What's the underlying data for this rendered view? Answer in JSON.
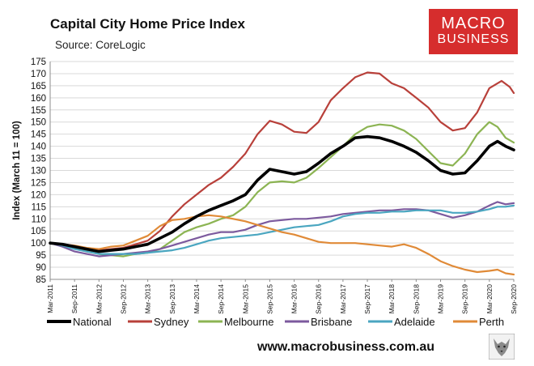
{
  "header": {
    "title": "Capital City Home Price Index",
    "source": "Source: CoreLogic",
    "logo_line1": "MACRO",
    "logo_line2": "BUSINESS",
    "footer_url": "www.macrobusiness.com.au"
  },
  "chart_data": {
    "type": "line",
    "title": "Capital City Home Price Index",
    "subtitle": "Source: CoreLogic",
    "xlabel": "",
    "ylabel": "Index (March 11 = 100)",
    "ylim": [
      85,
      175
    ],
    "yticks": [
      85,
      90,
      95,
      100,
      105,
      110,
      115,
      120,
      125,
      130,
      135,
      140,
      145,
      150,
      155,
      160,
      165,
      170,
      175
    ],
    "grid": "horizontal",
    "legend_position": "bottom",
    "x_tick_labels": [
      "Mar-2011",
      "Sep-2011",
      "Mar-2012",
      "Sep-2012",
      "Mar-2013",
      "Sep-2013",
      "Mar-2014",
      "Sep-2014",
      "Mar-2015",
      "Sep-2015",
      "Mar-2016",
      "Sep-2016",
      "Mar-2017",
      "Sep-2017",
      "Mar-2018",
      "Sep-2018",
      "Mar-2019",
      "Sep-2019",
      "Mar-2020",
      "Sep-2020"
    ],
    "x_months_from_mar_2011": [
      0,
      6,
      12,
      18,
      24,
      30,
      36,
      42,
      48,
      54,
      60,
      66,
      72,
      78,
      84,
      90,
      96,
      102,
      108,
      114
    ],
    "series": [
      {
        "name": "National",
        "color": "#000000",
        "width": 3.6,
        "points": [
          [
            0,
            100
          ],
          [
            3,
            99.5
          ],
          [
            6,
            98.5
          ],
          [
            9,
            97.5
          ],
          [
            12,
            96.5
          ],
          [
            15,
            97
          ],
          [
            18,
            97.5
          ],
          [
            21,
            98.5
          ],
          [
            24,
            99.5
          ],
          [
            27,
            102
          ],
          [
            30,
            104.5
          ],
          [
            33,
            108
          ],
          [
            36,
            111
          ],
          [
            39,
            113.5
          ],
          [
            42,
            115.5
          ],
          [
            45,
            117.5
          ],
          [
            48,
            120
          ],
          [
            51,
            126
          ],
          [
            54,
            130.5
          ],
          [
            57,
            129.5
          ],
          [
            60,
            128.5
          ],
          [
            63,
            129.5
          ],
          [
            66,
            133
          ],
          [
            69,
            137
          ],
          [
            72,
            140
          ],
          [
            75,
            143.5
          ],
          [
            78,
            144
          ],
          [
            81,
            143.5
          ],
          [
            84,
            142
          ],
          [
            87,
            140
          ],
          [
            90,
            137.5
          ],
          [
            93,
            134
          ],
          [
            96,
            130
          ],
          [
            99,
            128.5
          ],
          [
            102,
            129
          ],
          [
            105,
            134
          ],
          [
            108,
            140
          ],
          [
            110,
            142
          ],
          [
            112,
            140
          ],
          [
            114,
            138.5
          ]
        ]
      },
      {
        "name": "Sydney",
        "color": "#b8403a",
        "width": 2.2,
        "points": [
          [
            0,
            100
          ],
          [
            3,
            99
          ],
          [
            6,
            98
          ],
          [
            9,
            97.5
          ],
          [
            12,
            97
          ],
          [
            15,
            97.5
          ],
          [
            18,
            98
          ],
          [
            21,
            99.5
          ],
          [
            24,
            101
          ],
          [
            27,
            105
          ],
          [
            30,
            111
          ],
          [
            33,
            116
          ],
          [
            36,
            120
          ],
          [
            39,
            124
          ],
          [
            42,
            127
          ],
          [
            45,
            131.5
          ],
          [
            48,
            137
          ],
          [
            51,
            145
          ],
          [
            54,
            150.5
          ],
          [
            57,
            149
          ],
          [
            60,
            146
          ],
          [
            63,
            145.5
          ],
          [
            66,
            150
          ],
          [
            69,
            159
          ],
          [
            72,
            164
          ],
          [
            75,
            168.5
          ],
          [
            78,
            170.5
          ],
          [
            81,
            170
          ],
          [
            84,
            166
          ],
          [
            87,
            164
          ],
          [
            90,
            160
          ],
          [
            93,
            156
          ],
          [
            96,
            150
          ],
          [
            99,
            146.5
          ],
          [
            102,
            147.5
          ],
          [
            105,
            154
          ],
          [
            108,
            164
          ],
          [
            111,
            167
          ],
          [
            113,
            164.5
          ],
          [
            114,
            162
          ]
        ]
      },
      {
        "name": "Melbourne",
        "color": "#8cb453",
        "width": 2.2,
        "points": [
          [
            0,
            100
          ],
          [
            3,
            99.5
          ],
          [
            6,
            98
          ],
          [
            9,
            96.5
          ],
          [
            12,
            95.5
          ],
          [
            15,
            95
          ],
          [
            18,
            94.5
          ],
          [
            21,
            95.5
          ],
          [
            24,
            96
          ],
          [
            27,
            97.5
          ],
          [
            30,
            101
          ],
          [
            33,
            104.5
          ],
          [
            36,
            106.5
          ],
          [
            39,
            108
          ],
          [
            42,
            110
          ],
          [
            45,
            111.5
          ],
          [
            48,
            115
          ],
          [
            51,
            121
          ],
          [
            54,
            125
          ],
          [
            57,
            125.5
          ],
          [
            60,
            125
          ],
          [
            63,
            127
          ],
          [
            66,
            131
          ],
          [
            69,
            135.5
          ],
          [
            72,
            140
          ],
          [
            75,
            145
          ],
          [
            78,
            148
          ],
          [
            81,
            149
          ],
          [
            84,
            148.5
          ],
          [
            87,
            146.5
          ],
          [
            90,
            143
          ],
          [
            93,
            138
          ],
          [
            96,
            133
          ],
          [
            99,
            132
          ],
          [
            102,
            137
          ],
          [
            105,
            145
          ],
          [
            108,
            150
          ],
          [
            110,
            148
          ],
          [
            112,
            143.5
          ],
          [
            114,
            141.5
          ]
        ]
      },
      {
        "name": "Brisbane",
        "color": "#7c5a9e",
        "width": 2.2,
        "points": [
          [
            0,
            100
          ],
          [
            3,
            98.5
          ],
          [
            6,
            96.5
          ],
          [
            9,
            95.5
          ],
          [
            12,
            94.5
          ],
          [
            15,
            95
          ],
          [
            18,
            95.5
          ],
          [
            21,
            96
          ],
          [
            24,
            96.5
          ],
          [
            27,
            97.5
          ],
          [
            30,
            99
          ],
          [
            33,
            100.5
          ],
          [
            36,
            102
          ],
          [
            39,
            103.5
          ],
          [
            42,
            104.5
          ],
          [
            45,
            104.5
          ],
          [
            48,
            105.5
          ],
          [
            51,
            107.5
          ],
          [
            54,
            109
          ],
          [
            57,
            109.5
          ],
          [
            60,
            110
          ],
          [
            63,
            110
          ],
          [
            66,
            110.5
          ],
          [
            69,
            111
          ],
          [
            72,
            112
          ],
          [
            75,
            112.5
          ],
          [
            78,
            113
          ],
          [
            81,
            113.5
          ],
          [
            84,
            113.5
          ],
          [
            87,
            114
          ],
          [
            90,
            114
          ],
          [
            93,
            113.5
          ],
          [
            96,
            112
          ],
          [
            99,
            110.5
          ],
          [
            102,
            111.5
          ],
          [
            105,
            113
          ],
          [
            108,
            115.5
          ],
          [
            110,
            117
          ],
          [
            112,
            116
          ],
          [
            114,
            116.5
          ]
        ]
      },
      {
        "name": "Adelaide",
        "color": "#4aa6c0",
        "width": 2.2,
        "points": [
          [
            0,
            100
          ],
          [
            3,
            99
          ],
          [
            6,
            97.5
          ],
          [
            9,
            96.5
          ],
          [
            12,
            95.5
          ],
          [
            15,
            95.5
          ],
          [
            18,
            95.5
          ],
          [
            21,
            95.5
          ],
          [
            24,
            96
          ],
          [
            27,
            96.5
          ],
          [
            30,
            97
          ],
          [
            33,
            98
          ],
          [
            36,
            99.5
          ],
          [
            39,
            101
          ],
          [
            42,
            102
          ],
          [
            45,
            102.5
          ],
          [
            48,
            103
          ],
          [
            51,
            103.5
          ],
          [
            54,
            104.5
          ],
          [
            57,
            105.5
          ],
          [
            60,
            106.5
          ],
          [
            63,
            107
          ],
          [
            66,
            107.5
          ],
          [
            69,
            109
          ],
          [
            72,
            111
          ],
          [
            75,
            112
          ],
          [
            78,
            112.5
          ],
          [
            81,
            112.5
          ],
          [
            84,
            113
          ],
          [
            87,
            113
          ],
          [
            90,
            113.5
          ],
          [
            93,
            113.5
          ],
          [
            96,
            113.5
          ],
          [
            99,
            112.5
          ],
          [
            102,
            112.5
          ],
          [
            105,
            113
          ],
          [
            108,
            114
          ],
          [
            110,
            115
          ],
          [
            112,
            115
          ],
          [
            114,
            115.5
          ]
        ]
      },
      {
        "name": "Perth",
        "color": "#e08a37",
        "width": 2.2,
        "points": [
          [
            0,
            100
          ],
          [
            3,
            99.5
          ],
          [
            6,
            99
          ],
          [
            9,
            98
          ],
          [
            12,
            97.5
          ],
          [
            15,
            98.5
          ],
          [
            18,
            99
          ],
          [
            21,
            101
          ],
          [
            24,
            103
          ],
          [
            27,
            107
          ],
          [
            30,
            109.5
          ],
          [
            33,
            110
          ],
          [
            36,
            111
          ],
          [
            39,
            111.5
          ],
          [
            42,
            111
          ],
          [
            45,
            110
          ],
          [
            48,
            109
          ],
          [
            51,
            107.5
          ],
          [
            54,
            106
          ],
          [
            57,
            104.5
          ],
          [
            60,
            103.5
          ],
          [
            63,
            102
          ],
          [
            66,
            100.5
          ],
          [
            69,
            100
          ],
          [
            72,
            100
          ],
          [
            75,
            100
          ],
          [
            78,
            99.5
          ],
          [
            81,
            99
          ],
          [
            84,
            98.5
          ],
          [
            87,
            99.5
          ],
          [
            90,
            98
          ],
          [
            93,
            95.5
          ],
          [
            96,
            92.5
          ],
          [
            99,
            90.5
          ],
          [
            102,
            89
          ],
          [
            105,
            88
          ],
          [
            108,
            88.5
          ],
          [
            110,
            89
          ],
          [
            112,
            87.5
          ],
          [
            114,
            87
          ]
        ]
      }
    ]
  }
}
